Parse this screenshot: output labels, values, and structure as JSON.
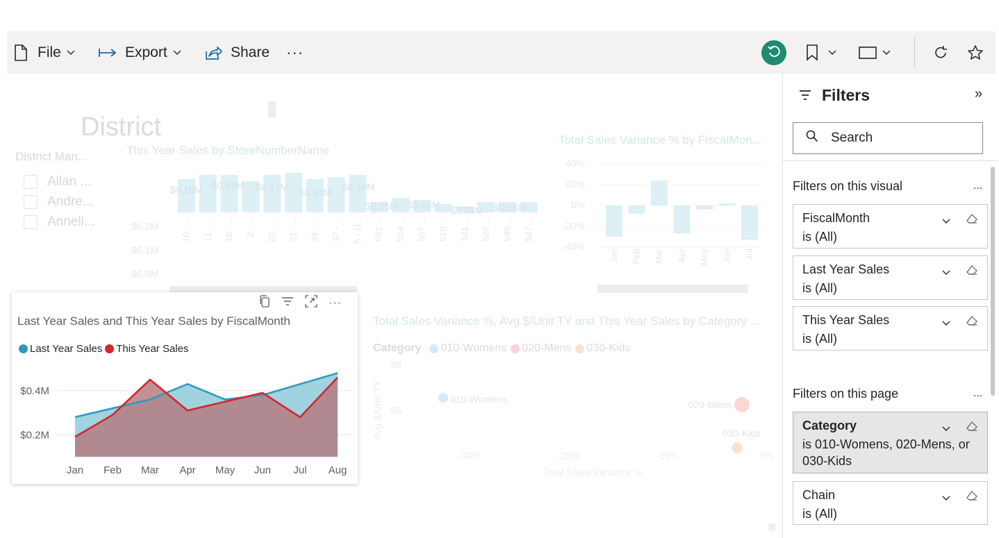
{
  "toolbar": {
    "file_label": "File",
    "export_label": "Export",
    "share_label": "Share",
    "more_label": "···",
    "accent_color": "#1f8a70"
  },
  "background_report": {
    "slicer_title": "District Man...",
    "slicer_header": "District",
    "slicer_options": [
      "Allan ...",
      "Andre...",
      "Anneli..."
    ],
    "store_chart": {
      "title": "This Year Sales by StoreNumberName",
      "y_ticks": [
        "$0.2M",
        "$0.1M",
        "$0.0M"
      ],
      "data_labels": [
        "$0.16M",
        "$0.18M",
        "$0.17M",
        "$0.15M",
        "$0.18M",
        "$0.05M",
        "$0.06M",
        "$0.03M",
        "$0.05M"
      ],
      "x_ticks": [
        "10 - ...",
        "11 - ...",
        "18 - ...",
        "2 - ...",
        "20 - ...",
        "21 - ...",
        "34 - ...",
        "37 - ...",
        "5 - U...",
        "501 ...",
        "504 ...",
        "507 ...",
        "510 ...",
        "511 ...",
        "526 ...",
        "546 ...",
        "547 ..."
      ]
    },
    "variance_chart": {
      "title": "Total Sales Variance % by FiscalMon...",
      "y_ticks": [
        "40%",
        "20%",
        "0%",
        "-20%",
        "-40%"
      ],
      "x_ticks": [
        "Jan",
        "Feb",
        "Mar",
        "Apr",
        "May",
        "Jun",
        "Jul"
      ]
    },
    "scatter_chart": {
      "title": "Total Sales Variance %, Avg $/Unit TY and This Year Sales by Category ...",
      "legend_title": "Category",
      "legend": [
        "010-Womens",
        "020-Mens",
        "030-Kids"
      ],
      "y_label": "Avg $/Unit TY",
      "y_ticks": [
        "$8",
        "$6"
      ],
      "x_label": "Total Sales Variance %",
      "x_ticks": [
        "-30%",
        "-20%",
        "-10%",
        "0%"
      ],
      "point_labels": [
        "010-Womens",
        "020-Mens",
        "030-Kids"
      ]
    }
  },
  "focus_visual": {
    "header_icons": [
      "copy-icon",
      "filter-icon",
      "focus-mode-icon",
      "more-options-icon"
    ],
    "more_label": "···",
    "title": "Last Year Sales and This Year Sales by FiscalMonth",
    "legend": [
      {
        "name": "Last Year Sales",
        "color": "#2e9bbd"
      },
      {
        "name": "This Year Sales",
        "color": "#d6252e"
      }
    ],
    "y_tick_labels": [
      "$0.4M",
      "$0.2M"
    ]
  },
  "chart_data": {
    "type": "area",
    "title": "Last Year Sales and This Year Sales by FiscalMonth",
    "xlabel": "",
    "ylabel": "",
    "categories": [
      "Jan",
      "Feb",
      "Mar",
      "Apr",
      "May",
      "Jun",
      "Jul",
      "Aug"
    ],
    "series": [
      {
        "name": "Last Year Sales",
        "values": [
          0.28,
          0.32,
          0.36,
          0.43,
          0.36,
          0.38,
          0.43,
          0.48
        ],
        "color": "#2e9bbd"
      },
      {
        "name": "This Year Sales",
        "values": [
          0.19,
          0.29,
          0.45,
          0.31,
          0.35,
          0.39,
          0.28,
          0.46
        ],
        "color": "#d6252e"
      }
    ],
    "y_ticks": [
      0.4,
      0.2
    ],
    "ylim": [
      0.1,
      0.5
    ],
    "grid": true,
    "legend_position": "top-left"
  },
  "filters": {
    "title": "Filters",
    "collapse_icon": "»",
    "search_placeholder": "Search",
    "visual_section": "Filters on this visual",
    "page_section": "Filters on this page",
    "section_more": "...",
    "visual_filters": [
      {
        "name": "FiscalMonth",
        "value": "is (All)"
      },
      {
        "name": "Last Year Sales",
        "value": "is (All)"
      },
      {
        "name": "This Year Sales",
        "value": "is (All)"
      }
    ],
    "page_filters": [
      {
        "name": "Category",
        "value": "is 010-Womens, 020-Mens, or 030-Kids"
      },
      {
        "name": "Chain",
        "value": "is (All)"
      }
    ]
  }
}
